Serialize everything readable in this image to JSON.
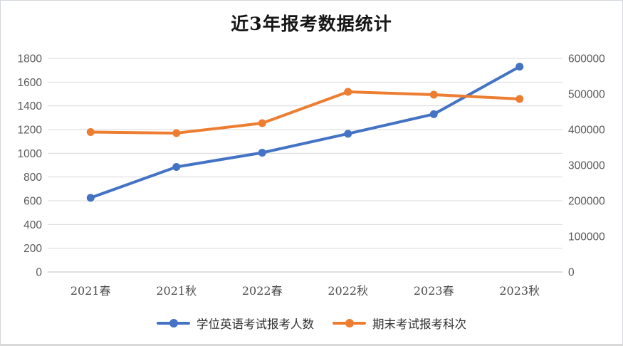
{
  "chart_data": {
    "type": "line",
    "title": "近3年报考数据统计",
    "categories": [
      "2021春",
      "2021秋",
      "2022春",
      "2022秋",
      "2023春",
      "2023秋"
    ],
    "series": [
      {
        "name": "学位英语考试报考人数",
        "axis": "left",
        "color": "#4472C4",
        "values": [
          625,
          885,
          1005,
          1165,
          1330,
          1730
        ]
      },
      {
        "name": "期末考试报考科次",
        "axis": "right",
        "color": "#ED7D31",
        "values": [
          393000,
          390000,
          418000,
          506000,
          498000,
          486000
        ]
      }
    ],
    "left_axis": {
      "min": 0,
      "max": 1800,
      "step": 200,
      "ticks": [
        0,
        200,
        400,
        600,
        800,
        1000,
        1200,
        1400,
        1600,
        1800
      ]
    },
    "right_axis": {
      "min": 0,
      "max": 600000,
      "step": 100000,
      "ticks": [
        0,
        100000,
        200000,
        300000,
        400000,
        500000,
        600000
      ]
    },
    "grid": "horizontal",
    "legend_position": "bottom",
    "marker": "circle",
    "colors": {
      "gridline": "#d9d9d9",
      "axis_line": "#bfbfbf",
      "tick_label": "#595959",
      "title": "#161616",
      "background": "#ffffff"
    }
  }
}
